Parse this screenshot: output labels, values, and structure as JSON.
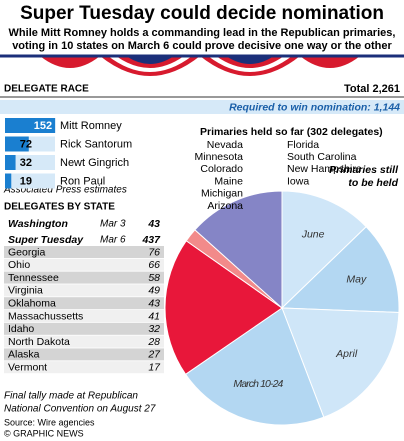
{
  "header": {
    "title": "Super Tuesday could decide nomination",
    "subtitle": [
      "While Mitt Romney holds a commanding lead in the Republican primaries,",
      "voting in 10 states on March 6 could prove decisive one way or the other"
    ]
  },
  "delegate_race": {
    "label": "DELEGATE RACE",
    "total": "Total 2,261",
    "required": "Required to win nomination: 1,144",
    "candidates": [
      {
        "name": "Mitt Romney",
        "delegates": 152
      },
      {
        "name": "Rick Santorum",
        "delegates": 72
      },
      {
        "name": "Newt Gingrich",
        "delegates": 32
      },
      {
        "name": "Ron Paul",
        "delegates": 19
      }
    ],
    "note": "Associated Press estimates"
  },
  "by_state": {
    "label": "DELEGATES BY STATE",
    "events": [
      {
        "name": "Washington",
        "date": "Mar 3",
        "delegates": 43
      },
      {
        "name": "Super Tuesday",
        "date": "Mar 6",
        "delegates": 437
      }
    ],
    "states": [
      {
        "name": "Georgia",
        "delegates": 76
      },
      {
        "name": "Ohio",
        "delegates": 66
      },
      {
        "name": "Tennessee",
        "delegates": 58
      },
      {
        "name": "Virginia",
        "delegates": 49
      },
      {
        "name": "Oklahoma",
        "delegates": 43
      },
      {
        "name": "Massachussetts",
        "delegates": 41
      },
      {
        "name": "Idaho",
        "delegates": 32
      },
      {
        "name": "North Dakota",
        "delegates": 28
      },
      {
        "name": "Alaska",
        "delegates": 27
      },
      {
        "name": "Vermont",
        "delegates": 17
      }
    ]
  },
  "chart_data": {
    "type": "pie",
    "held_label": "Primaries held so far (302 delegates)",
    "held_states_left": [
      "Nevada",
      "Minnesota",
      "Colorado",
      "Maine",
      "Michigan",
      "Arizona"
    ],
    "held_states_right": [
      "Florida",
      "South Carolina",
      "New Hampshire",
      "Iowa"
    ],
    "remaining_label": [
      "Primaries still",
      "to be held"
    ],
    "slices": [
      {
        "name": "June",
        "value": 289,
        "color": "#cfe6f8"
      },
      {
        "name": "May",
        "value": 290,
        "color": "#b3d7f2"
      },
      {
        "name": "April",
        "value": 420,
        "color": "#cfe6f8"
      },
      {
        "name": "March 10-24",
        "value": 480,
        "color": "#b3d7f2"
      },
      {
        "value": 437,
        "color": "#e8173a"
      },
      {
        "value": 43,
        "color": "#f28a8a"
      },
      {
        "value": 302,
        "color": "#8585c6"
      }
    ]
  },
  "footer": {
    "note": [
      "Final tally made at Republican",
      "National Convention on August 27"
    ],
    "source": "Source: Wire agencies",
    "credit": "© GRAPHIC NEWS"
  }
}
